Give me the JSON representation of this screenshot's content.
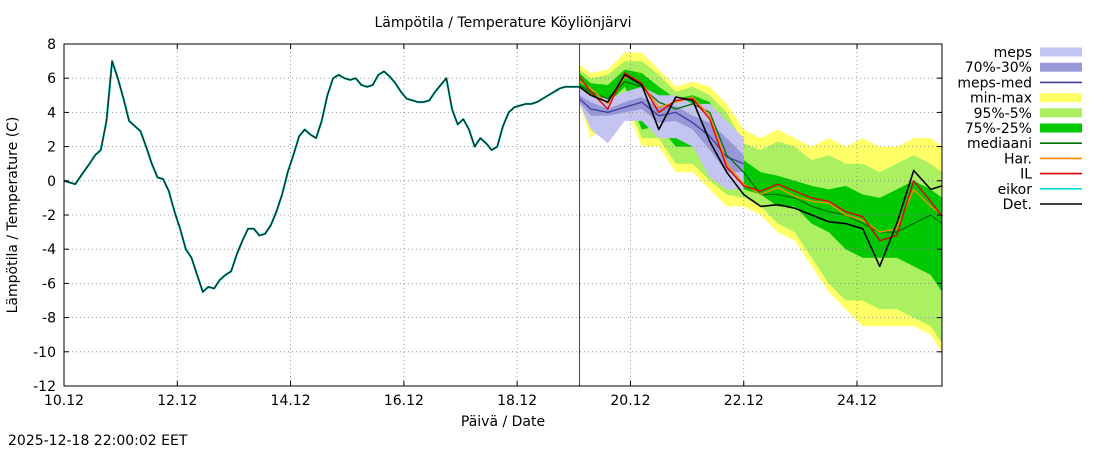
{
  "chart_data": {
    "type": "line",
    "title": "Lämpötila / Temperature   Köyliönjärvi",
    "xlabel": "Päivä / Date",
    "ylabel": "Lämpötila / Temperature (C)",
    "footer": "2025-12-18 22:00:02 EET",
    "x_unit": "days since 10.12",
    "xlim": [
      0,
      15.5
    ],
    "ylim": [
      -12,
      8
    ],
    "x_ticks": [
      {
        "x": 0,
        "label": "10.12"
      },
      {
        "x": 2,
        "label": "12.12"
      },
      {
        "x": 4,
        "label": "14.12"
      },
      {
        "x": 6,
        "label": "16.12"
      },
      {
        "x": 8,
        "label": "18.12"
      },
      {
        "x": 10,
        "label": "20.12"
      },
      {
        "x": 12,
        "label": "22.12"
      },
      {
        "x": 14,
        "label": "24.12"
      }
    ],
    "y_ticks": [
      {
        "y": 8,
        "label": "8"
      },
      {
        "y": 6,
        "label": "6"
      },
      {
        "y": 4,
        "label": "4"
      },
      {
        "y": 2,
        "label": "2"
      },
      {
        "y": 0,
        "label": "0"
      },
      {
        "y": -2,
        "label": "-2"
      },
      {
        "y": -4,
        "label": "-4"
      },
      {
        "y": -6,
        "label": "-6"
      },
      {
        "y": -8,
        "label": "-8"
      },
      {
        "y": -10,
        "label": "-10"
      },
      {
        "y": -12,
        "label": "-12"
      }
    ],
    "grid": true,
    "forecast_start_x": 9.1,
    "legend": [
      {
        "key": "meps",
        "label": "meps",
        "color": "#c4c4f0",
        "style": "box"
      },
      {
        "key": "meps_70_30",
        "label": "70%-30%",
        "color": "#9898d8",
        "style": "box"
      },
      {
        "key": "meps_med",
        "label": "meps-med",
        "color": "#3c3ca0",
        "style": "line"
      },
      {
        "key": "minmax",
        "label": "min-max",
        "color": "#ffff66",
        "style": "box"
      },
      {
        "key": "p95_5",
        "label": "95%-5%",
        "color": "#aaf060",
        "style": "box"
      },
      {
        "key": "p75_25",
        "label": "75%-25%",
        "color": "#00c800",
        "style": "box"
      },
      {
        "key": "mediaani",
        "label": "mediaani",
        "color": "#007000",
        "style": "line"
      },
      {
        "key": "har",
        "label": "Har.",
        "color": "#ff8c00",
        "style": "line"
      },
      {
        "key": "il",
        "label": "IL",
        "color": "#e00000",
        "style": "line"
      },
      {
        "key": "eikor",
        "label": "eikor",
        "color": "#00e0e0",
        "style": "line"
      },
      {
        "key": "det",
        "label": "Det.",
        "color": "#000000",
        "style": "line"
      }
    ],
    "observed": {
      "x": [
        0,
        0.2,
        0.3,
        0.45,
        0.55,
        0.65,
        0.75,
        0.85,
        0.95,
        1.05,
        1.15,
        1.25,
        1.35,
        1.45,
        1.55,
        1.65,
        1.75,
        1.85,
        1.95,
        2.05,
        2.15,
        2.25,
        2.35,
        2.45,
        2.55,
        2.65,
        2.75,
        2.85,
        2.95,
        3.05,
        3.15,
        3.25,
        3.35,
        3.45,
        3.55,
        3.65,
        3.75,
        3.85,
        3.95,
        4.05,
        4.15,
        4.25,
        4.35,
        4.45,
        4.55,
        4.65,
        4.75,
        4.85,
        4.95,
        5.05,
        5.15,
        5.25,
        5.35,
        5.45,
        5.55,
        5.65,
        5.75,
        5.85,
        5.95,
        6.05,
        6.15,
        6.25,
        6.35,
        6.45,
        6.55,
        6.65,
        6.75,
        6.85,
        6.95,
        7.05,
        7.15,
        7.25,
        7.35,
        7.45,
        7.55,
        7.65,
        7.75,
        7.85,
        7.95,
        8.05,
        8.15,
        8.25,
        8.35,
        8.45,
        8.55,
        8.65,
        8.75,
        8.85,
        8.95,
        9.1
      ],
      "y": [
        0,
        -0.2,
        0.3,
        1.0,
        1.5,
        1.8,
        3.5,
        7.0,
        6.0,
        4.8,
        3.5,
        3.2,
        2.9,
        2.0,
        1.0,
        0.2,
        0.1,
        -0.6,
        -1.8,
        -2.8,
        -4.0,
        -4.5,
        -5.5,
        -6.5,
        -6.2,
        -6.3,
        -5.8,
        -5.5,
        -5.3,
        -4.3,
        -3.5,
        -2.8,
        -2.8,
        -3.2,
        -3.1,
        -2.6,
        -1.8,
        -0.8,
        0.5,
        1.5,
        2.6,
        3.0,
        2.7,
        2.5,
        3.5,
        5.0,
        6.0,
        6.2,
        6.0,
        5.9,
        6.0,
        5.6,
        5.5,
        5.6,
        6.2,
        6.4,
        6.1,
        5.7,
        5.2,
        4.8,
        4.7,
        4.6,
        4.6,
        4.7,
        5.2,
        5.6,
        6.0,
        4.2,
        3.3,
        3.6,
        3.0,
        2.0,
        2.5,
        2.2,
        1.8,
        2.0,
        3.2,
        4.0,
        4.3,
        4.4,
        4.5,
        4.5,
        4.6,
        4.8,
        5.0,
        5.2,
        5.4,
        5.5,
        5.5,
        5.5
      ]
    },
    "forecast_x": [
      9.1,
      9.3,
      9.6,
      9.9,
      10.2,
      10.5,
      10.8,
      11.1,
      11.4,
      11.7,
      12.0,
      12.3,
      12.6,
      12.9,
      13.2,
      13.5,
      13.8,
      14.1,
      14.4,
      14.7,
      15.0,
      15.3,
      15.5
    ],
    "bands": {
      "minmax": {
        "lower": [
          4.5,
          2.5,
          3.5,
          4.5,
          2.0,
          2.0,
          0.5,
          0.5,
          -0.5,
          -1.5,
          -1.5,
          -2.0,
          -3.0,
          -3.5,
          -5.0,
          -6.5,
          -7.5,
          -8.5,
          -8.5,
          -8.5,
          -8.5,
          -9.0,
          -10.0
        ],
        "upper": [
          6.8,
          6.3,
          6.5,
          7.5,
          7.5,
          6.5,
          5.5,
          5.8,
          5.5,
          4.5,
          3.0,
          2.5,
          3.0,
          2.5,
          2.0,
          2.5,
          2.0,
          2.5,
          2.0,
          2.0,
          2.5,
          2.5,
          2.0
        ]
      },
      "p95_5": {
        "lower": [
          4.8,
          3.0,
          4.0,
          5.0,
          2.5,
          2.5,
          1.0,
          1.0,
          0.0,
          -0.8,
          -1.0,
          -1.5,
          -2.5,
          -3.0,
          -4.5,
          -6.0,
          -7.0,
          -7.0,
          -7.5,
          -7.5,
          -8.0,
          -8.5,
          -9.5
        ],
        "upper": [
          6.5,
          6.0,
          6.2,
          7.0,
          7.0,
          6.2,
          5.2,
          5.5,
          5.0,
          4.0,
          2.2,
          1.8,
          2.3,
          2.0,
          1.2,
          1.5,
          1.0,
          1.0,
          0.5,
          1.0,
          1.5,
          1.0,
          0.5
        ]
      },
      "p75_25": {
        "lower": [
          5.0,
          3.5,
          4.5,
          5.5,
          3.0,
          3.2,
          2.0,
          2.0,
          1.0,
          -0.2,
          -0.5,
          -0.8,
          -1.5,
          -1.5,
          -2.5,
          -3.0,
          -4.0,
          -4.5,
          -4.5,
          -4.5,
          -5.0,
          -5.5,
          -6.5
        ],
        "upper": [
          6.3,
          5.7,
          5.6,
          6.5,
          6.3,
          5.5,
          4.8,
          5.0,
          4.6,
          2.5,
          1.2,
          0.5,
          0.3,
          0.0,
          -0.3,
          -0.5,
          -0.3,
          -0.8,
          -1.0,
          -0.5,
          0.0,
          -0.5,
          -1.0
        ]
      },
      "meps": {
        "x": [
          9.1,
          9.3,
          9.6,
          9.9,
          10.2,
          10.5,
          10.8,
          11.1,
          11.4,
          11.7,
          12.0
        ],
        "lower": [
          4.5,
          3.0,
          2.2,
          3.5,
          3.5,
          2.5,
          2.5,
          2.0,
          0.2,
          -0.5,
          -0.5
        ],
        "upper": [
          5.5,
          5.0,
          4.8,
          5.2,
          5.5,
          5.0,
          5.0,
          4.5,
          4.5,
          3.5,
          2.5
        ]
      },
      "meps_70_30": {
        "x": [
          9.1,
          9.3,
          9.6,
          9.9,
          10.2,
          10.5,
          10.8,
          11.1,
          11.4,
          11.7,
          12.0
        ],
        "lower": [
          4.6,
          3.8,
          3.8,
          4.0,
          4.2,
          3.4,
          3.5,
          3.0,
          1.8,
          0.5,
          0.5
        ],
        "upper": [
          5.0,
          4.6,
          4.2,
          4.6,
          4.9,
          4.3,
          4.4,
          3.8,
          3.4,
          2.5,
          1.5
        ]
      }
    },
    "series": [
      {
        "key": "meps_med",
        "name": "meps-med",
        "color": "#3c3ca0",
        "width": 1.3,
        "x": [
          9.1,
          9.3,
          9.6,
          9.9,
          10.2,
          10.5,
          10.8,
          11.1,
          11.4,
          11.7,
          12.0
        ],
        "values": [
          4.8,
          4.2,
          4.0,
          4.3,
          4.6,
          3.8,
          4.0,
          3.4,
          2.6,
          1.4,
          1.0
        ]
      },
      {
        "key": "mediaani",
        "name": "mediaani",
        "color": "#007000",
        "width": 1.3,
        "values": [
          5.6,
          5.2,
          4.8,
          5.8,
          5.5,
          4.6,
          4.2,
          4.5,
          4.0,
          1.5,
          0.5,
          -0.8,
          -0.8,
          -1.0,
          -1.5,
          -1.8,
          -2.0,
          -2.5,
          -3.0,
          -3.0,
          -2.5,
          -2.0,
          -2.5
        ]
      },
      {
        "key": "har",
        "name": "Har.",
        "color": "#ff8c00",
        "width": 1.3,
        "values": [
          5.8,
          5.4,
          4.5,
          6.1,
          5.7,
          4.3,
          4.6,
          4.9,
          3.8,
          1.0,
          -0.2,
          -0.8,
          -0.4,
          -0.9,
          -1.2,
          -1.3,
          -2.0,
          -2.3,
          -3.0,
          -2.8,
          -0.5,
          -1.5,
          -2.0
        ]
      },
      {
        "key": "il",
        "name": "IL",
        "color": "#e00000",
        "width": 1.4,
        "values": [
          6.1,
          5.2,
          4.2,
          6.3,
          5.7,
          4.0,
          4.7,
          4.8,
          3.6,
          0.8,
          -0.3,
          -0.6,
          -0.2,
          -0.6,
          -1.0,
          -1.2,
          -1.8,
          -2.1,
          -3.5,
          -3.2,
          0.0,
          -1.2,
          -2.1
        ]
      },
      {
        "key": "det",
        "name": "Det.",
        "color": "#000000",
        "width": 1.6,
        "values": [
          5.5,
          5.0,
          4.6,
          6.2,
          5.6,
          3.0,
          4.9,
          4.7,
          2.3,
          0.5,
          -0.8,
          -1.5,
          -1.4,
          -1.6,
          -2.0,
          -2.4,
          -2.5,
          -2.8,
          -5.0,
          -2.5,
          0.6,
          -0.5,
          -0.3
        ]
      }
    ]
  }
}
